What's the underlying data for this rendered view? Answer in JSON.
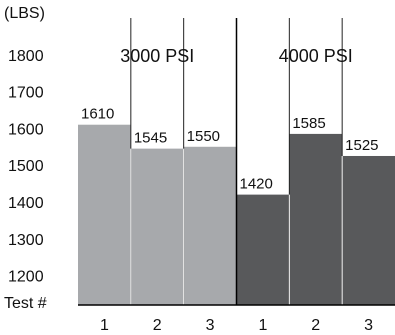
{
  "chart_data": {
    "type": "bar",
    "ylabel": "(LBS)",
    "xlabel": "Test #",
    "yticks": [
      1200,
      1300,
      1400,
      1500,
      1600,
      1700,
      1800
    ],
    "ylim": [
      1120,
      1900
    ],
    "grid": false,
    "groups": [
      {
        "name": "3000 PSI",
        "color": "#a7a9ac",
        "categories": [
          "1",
          "2",
          "3"
        ],
        "values": [
          1610,
          1545,
          1550
        ]
      },
      {
        "name": "4000 PSI",
        "color": "#58595b",
        "categories": [
          "1",
          "2",
          "3"
        ],
        "values": [
          1420,
          1585,
          1525
        ]
      }
    ]
  }
}
